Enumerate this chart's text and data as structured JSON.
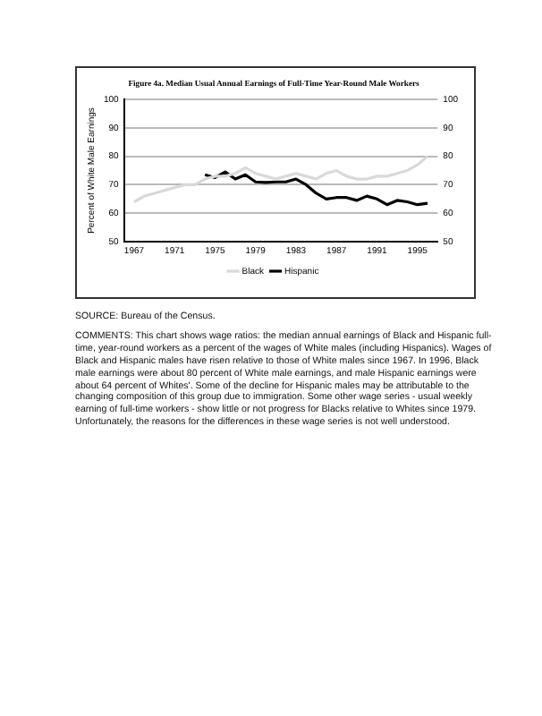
{
  "chart_data": {
    "type": "line",
    "title": "Figure 4a. Median Usual Annual Earnings of Full-Time Year-Round Male Workers",
    "ylabel": "Percent of White Male Earnings",
    "xlim": [
      1966,
      1997
    ],
    "xticks": [
      1967,
      1971,
      1975,
      1979,
      1983,
      1987,
      1991,
      1995
    ],
    "ylim": [
      50,
      100
    ],
    "yticks": [
      50,
      60,
      70,
      80,
      90,
      100
    ],
    "y2lim": [
      50,
      100
    ],
    "y2ticks": [
      50,
      60,
      70,
      80,
      90,
      100
    ],
    "grid": "y",
    "legend": "bottom",
    "marker": "none",
    "line_style": "solid",
    "series": [
      {
        "name": "Black",
        "color": "#d9d9d9",
        "x": [
          1967,
          1968,
          1969,
          1970,
          1971,
          1972,
          1973,
          1974,
          1975,
          1976,
          1977,
          1978,
          1979,
          1980,
          1981,
          1982,
          1983,
          1984,
          1985,
          1986,
          1987,
          1988,
          1989,
          1990,
          1991,
          1992,
          1993,
          1994,
          1995,
          1996
        ],
        "values": [
          64,
          66,
          67,
          68,
          69,
          70,
          70,
          72,
          73,
          73,
          74,
          76,
          74,
          73,
          72,
          73,
          74,
          73,
          72,
          74,
          75,
          73,
          72,
          72,
          73,
          73,
          74,
          75,
          77,
          80
        ]
      },
      {
        "name": "Hispanic",
        "color": "#000000",
        "x": [
          1974,
          1975,
          1976,
          1977,
          1978,
          1979,
          1980,
          1981,
          1982,
          1983,
          1984,
          1985,
          1986,
          1987,
          1988,
          1989,
          1990,
          1991,
          1992,
          1993,
          1994,
          1995,
          1996
        ],
        "values": [
          73.5,
          72.5,
          74.5,
          72,
          73.5,
          71,
          70.8,
          71,
          71,
          72,
          70,
          67,
          65,
          65.5,
          65.5,
          64.5,
          66,
          65,
          63,
          64.5,
          64,
          63,
          63.5
        ]
      }
    ],
    "annotations": [
      "SOURCE:  Bureau of the Census.",
      "COMMENTS: This chart shows wage ratios: the median annual earnings of Black and Hispanic full-time, year-round workers as a percent of the wages of White males (including Hispanics). Wages of Black and Hispanic males have risen relative to those of White males since 1967. In 1996, Black male earnings were about 80 percent of White male earnings, and male Hispanic earnings were about 64 percent of Whites'.  Some of the decline for Hispanic males may be attributable to the changing composition of this group due to immigration. Some other wage series - usual weekly earning of full-time workers - show little or not progress for Blacks relative to Whites since 1979.  Unfortunately, the reasons for the differences in these wage series is not well understood."
    ]
  }
}
